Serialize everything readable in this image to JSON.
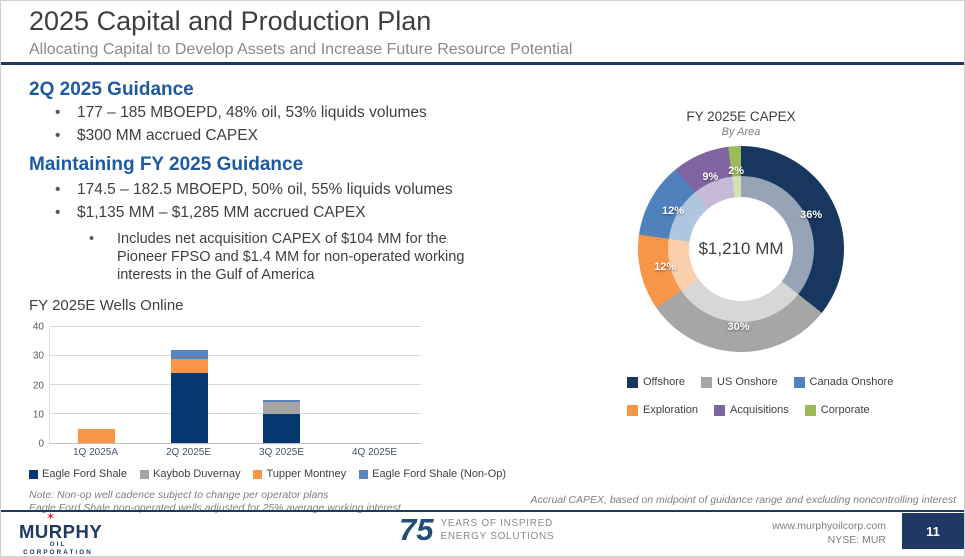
{
  "slide": {
    "title": "2025 Capital and Production Plan",
    "subtitle": "Allocating Capital to Develop Assets and Increase Future Resource Potential"
  },
  "sections": {
    "q2": {
      "heading": "2Q 2025 Guidance",
      "bullets": [
        "177 – 185 MBOEPD, 48% oil, 53% liquids volumes",
        "$300 MM accrued CAPEX"
      ]
    },
    "fy": {
      "heading": "Maintaining FY 2025 Guidance",
      "bullets": [
        "174.5 – 182.5 MBOEPD, 50% oil, 55% liquids volumes",
        "$1,135 MM – $1,285 MM accrued CAPEX"
      ],
      "sub_bullets": [
        "Includes net acquisition CAPEX of $104 MM for the Pioneer FPSO and $1.4 MM for non-operated working interests in the Gulf of America"
      ]
    }
  },
  "chart_data": [
    {
      "type": "bar",
      "stacked": true,
      "title": "FY 2025E Wells Online",
      "categories": [
        "1Q 2025A",
        "2Q 2025E",
        "3Q 2025E",
        "4Q 2025E"
      ],
      "series": [
        {
          "name": "Eagle Ford Shale",
          "color": "#04386e",
          "values": [
            0,
            24,
            10,
            0
          ]
        },
        {
          "name": "Kaybob Duvernay",
          "color": "#a6a6a6",
          "values": [
            0,
            0,
            4,
            0
          ]
        },
        {
          "name": "Tupper Montney",
          "color": "#f79646",
          "values": [
            5,
            5,
            0,
            0
          ]
        },
        {
          "name": "Eagle Ford Shale (Non-Op)",
          "color": "#5b84be",
          "values": [
            0,
            3,
            1,
            0
          ]
        }
      ],
      "ylim": [
        0,
        40
      ],
      "yticks": [
        0,
        10,
        20,
        30,
        40
      ],
      "grid": true,
      "legend_position": "bottom"
    },
    {
      "type": "pie",
      "subtype": "donut",
      "title": "FY 2025E CAPEX",
      "subtitle": "By Area",
      "center_label": "$1,210 MM",
      "slices": [
        {
          "name": "Offshore",
          "pct": 36,
          "color": "#17375e"
        },
        {
          "name": "US Onshore",
          "pct": 30,
          "color": "#a6a6a6"
        },
        {
          "name": "Exploration",
          "pct": 12,
          "color": "#f79646"
        },
        {
          "name": "Canada Onshore",
          "pct": 12,
          "color": "#4f81bd"
        },
        {
          "name": "Acquisitions",
          "pct": 9,
          "color": "#8064a2"
        },
        {
          "name": "Corporate",
          "pct": 2,
          "color": "#9bbb59"
        }
      ],
      "legend_rows": [
        [
          "Offshore",
          "US Onshore",
          "Canada Onshore"
        ],
        [
          "Exploration",
          "Acquisitions",
          "Corporate"
        ]
      ],
      "legend_position": "bottom"
    }
  ],
  "notes": {
    "bar_note1": "Note: Non-op well cadence subject to change per operator plans",
    "bar_note2": "Eagle Ford Shale non-operated wells adjusted for 25% average working interest",
    "capex_note": "Accrual CAPEX, based on midpoint of guidance range and excluding noncontrolling interest"
  },
  "footer": {
    "star_icon": "✶",
    "logo_name": "MURPHY",
    "logo_sub": "OIL CORPORATION",
    "anniversary_number": "75",
    "anniversary_line1": "YEARS OF INSPIRED",
    "anniversary_line2": "ENERGY SOLUTIONS",
    "website": "www.murphyoilcorp.com",
    "ticker": "NYSE: MUR",
    "page_number": "11"
  },
  "colors": {
    "brand_navy": "#1f3864",
    "heading_blue": "#1e5aa0",
    "accent_red": "#d22630",
    "text_dark": "#404040",
    "text_gray": "#7f7f7f"
  }
}
